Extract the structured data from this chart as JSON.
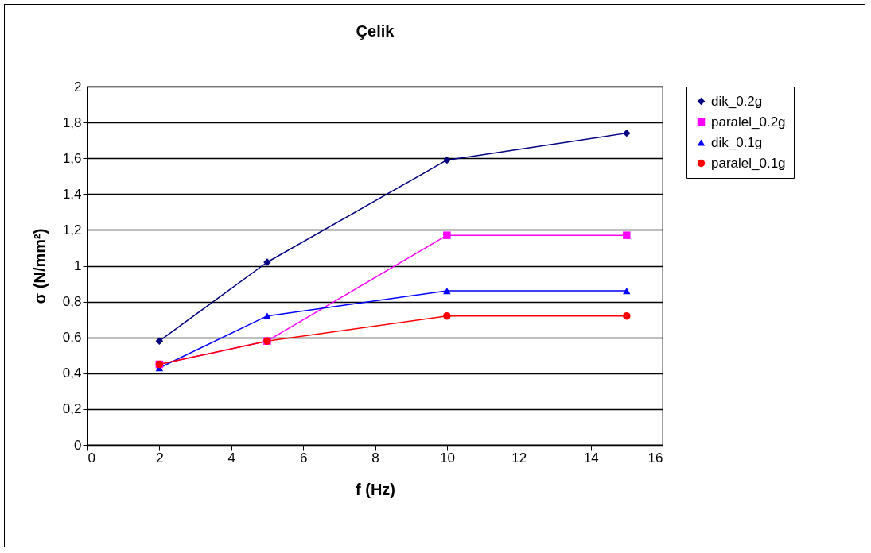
{
  "chart_data": {
    "type": "line",
    "title": "Çelik",
    "xlabel": "f (Hz)",
    "ylabel": "σ (N/mm²)",
    "x": [
      2,
      5,
      10,
      15
    ],
    "series": [
      {
        "name": "dik_0.2g",
        "color": "#000080",
        "marker": "diamond",
        "values": [
          0.58,
          1.02,
          1.59,
          1.74
        ]
      },
      {
        "name": "paralel_0.2g",
        "color": "#ff00ff",
        "marker": "square",
        "values": [
          0.45,
          0.58,
          1.17,
          1.17
        ]
      },
      {
        "name": "dik_0.1g",
        "color": "#0000ff",
        "marker": "triangle",
        "values": [
          0.43,
          0.72,
          0.86,
          0.86
        ]
      },
      {
        "name": "paralel_0.1g",
        "color": "#ff0000",
        "marker": "circle",
        "values": [
          0.45,
          0.58,
          0.72,
          0.72
        ]
      }
    ],
    "xlim": [
      0,
      16
    ],
    "xticks": [
      0,
      2,
      4,
      6,
      8,
      10,
      12,
      14,
      16
    ],
    "ylim": [
      0,
      2
    ],
    "yticks": [
      0,
      {
        "value": 0.2,
        "label": "0,2"
      },
      {
        "value": 0.4,
        "label": "0,4"
      },
      {
        "value": 0.6,
        "label": "0,6"
      },
      {
        "value": 0.8,
        "label": "0,8"
      },
      1,
      {
        "value": 1.2,
        "label": "1,2"
      },
      {
        "value": 1.4,
        "label": "1,4"
      },
      {
        "value": 1.6,
        "label": "1,6"
      },
      {
        "value": 1.8,
        "label": "1,8"
      },
      2
    ],
    "grid": "y",
    "legend": "right"
  }
}
